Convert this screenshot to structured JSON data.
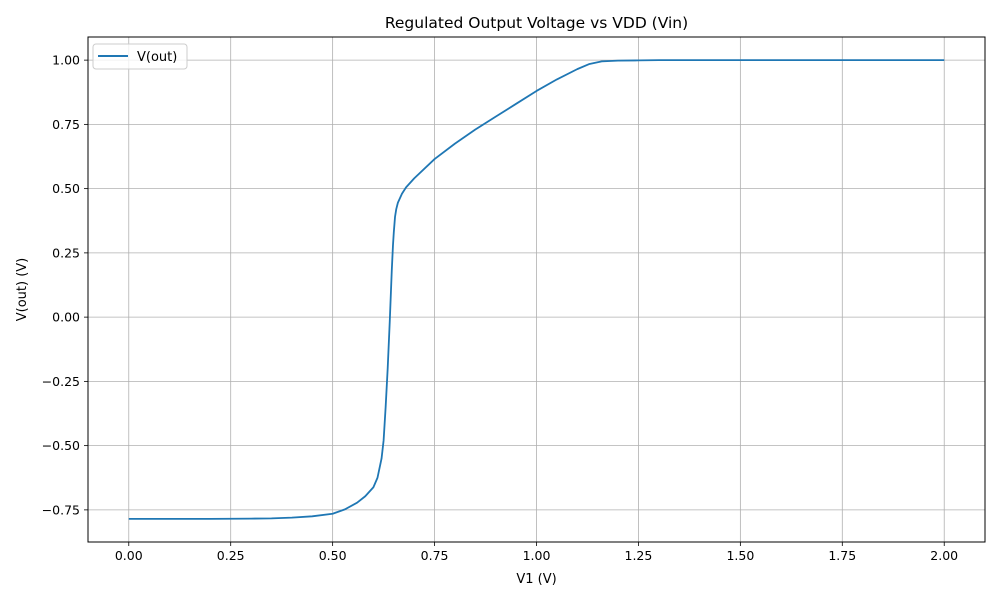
{
  "chart_data": {
    "type": "line",
    "title": "Regulated Output Voltage vs VDD (Vin)",
    "xlabel": "V1 (V)",
    "ylabel": "V(out) (V)",
    "xlim": [
      -0.1,
      2.1
    ],
    "ylim": [
      -0.875,
      1.09
    ],
    "grid": true,
    "legend_position": "top-left",
    "x_ticks": [
      0.0,
      0.25,
      0.5,
      0.75,
      1.0,
      1.25,
      1.5,
      1.75,
      2.0
    ],
    "x_tick_labels": [
      "0.00",
      "0.25",
      "0.50",
      "0.75",
      "1.00",
      "1.25",
      "1.50",
      "1.75",
      "2.00"
    ],
    "y_ticks": [
      -0.75,
      -0.5,
      -0.25,
      0.0,
      0.25,
      0.5,
      0.75,
      1.0
    ],
    "y_tick_labels": [
      "−0.75",
      "−0.50",
      "−0.25",
      "0.00",
      "0.25",
      "0.50",
      "0.75",
      "1.00"
    ],
    "series": [
      {
        "name": "V(out)",
        "color": "#1f77b4",
        "x": [
          0.0,
          0.1,
          0.2,
          0.3,
          0.35,
          0.4,
          0.45,
          0.5,
          0.53,
          0.56,
          0.58,
          0.6,
          0.61,
          0.62,
          0.625,
          0.63,
          0.635,
          0.64,
          0.645,
          0.648,
          0.65,
          0.653,
          0.656,
          0.66,
          0.67,
          0.68,
          0.7,
          0.75,
          0.8,
          0.85,
          0.9,
          0.95,
          1.0,
          1.05,
          1.1,
          1.13,
          1.16,
          1.2,
          1.25,
          1.3,
          1.5,
          1.75,
          2.0
        ],
        "values": [
          -0.785,
          -0.785,
          -0.785,
          -0.784,
          -0.783,
          -0.78,
          -0.775,
          -0.765,
          -0.748,
          -0.722,
          -0.697,
          -0.662,
          -0.625,
          -0.55,
          -0.48,
          -0.35,
          -0.2,
          -0.02,
          0.18,
          0.28,
          0.33,
          0.39,
          0.42,
          0.445,
          0.48,
          0.505,
          0.54,
          0.615,
          0.675,
          0.73,
          0.78,
          0.83,
          0.88,
          0.925,
          0.965,
          0.985,
          0.995,
          0.998,
          0.999,
          1.0,
          1.0,
          1.0,
          1.0
        ]
      }
    ]
  }
}
